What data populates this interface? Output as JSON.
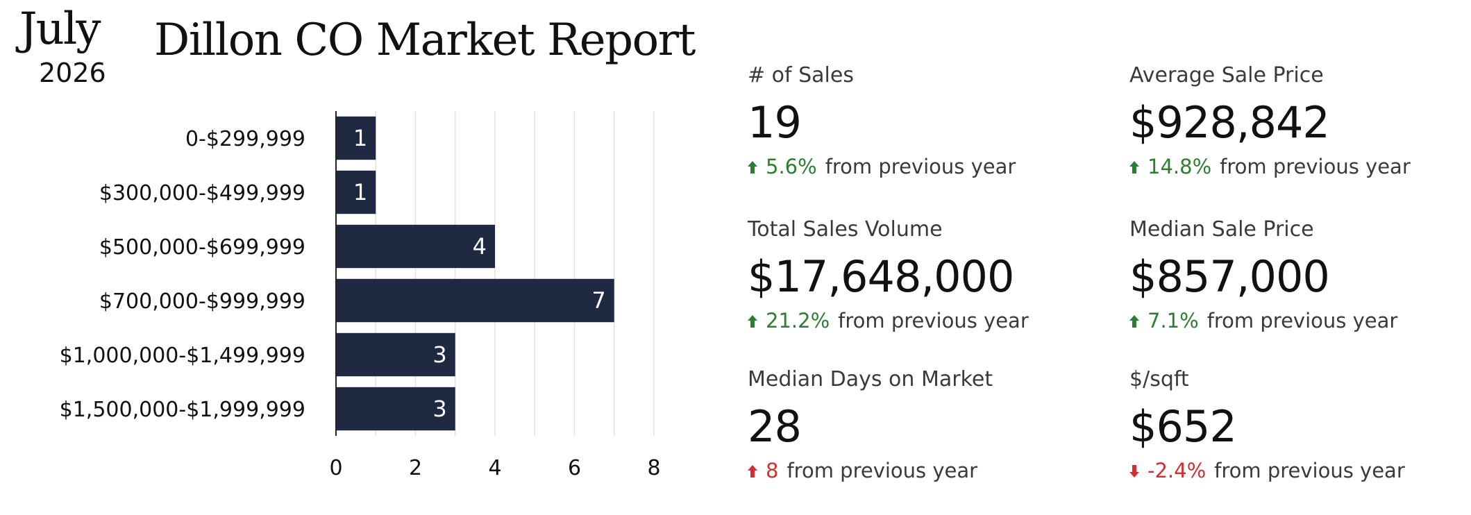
{
  "header": {
    "month": "July",
    "year": "2026",
    "title": "Dillon CO Market Report"
  },
  "chart_data": {
    "type": "bar",
    "orientation": "horizontal",
    "categories": [
      "0-$299,999",
      "$300,000-$499,999",
      "$500,000-$699,999",
      "$700,000-$999,999",
      "$1,000,000-$1,499,999",
      "$1,500,000-$1,999,999"
    ],
    "values": [
      1,
      1,
      4,
      7,
      3,
      3
    ],
    "xticks": [
      "0",
      "2",
      "4",
      "6",
      "8"
    ],
    "xlim": [
      0,
      8
    ],
    "bar_color": "#1f2a42",
    "grid": "vertical",
    "title": "",
    "xlabel": "",
    "ylabel": ""
  },
  "stats": [
    {
      "label": "# of Sales",
      "value": "19",
      "change": "5.6%",
      "direction": "up",
      "suffix": "from previous year"
    },
    {
      "label": "Average Sale Price",
      "value": "$928,842",
      "change": "14.8%",
      "direction": "up",
      "suffix": "from previous year"
    },
    {
      "label": "Total Sales Volume",
      "value": "$17,648,000",
      "change": "21.2%",
      "direction": "up",
      "suffix": "from previous year"
    },
    {
      "label": "Median Sale Price",
      "value": "$857,000",
      "change": "7.1%",
      "direction": "up",
      "suffix": "from previous year"
    },
    {
      "label": "Median Days on Market",
      "value": "28",
      "change": "8",
      "direction": "up-red",
      "suffix": "from previous year"
    },
    {
      "label": "$/sqft",
      "value": "$652",
      "change": "-2.4%",
      "direction": "down",
      "suffix": "from previous year"
    }
  ],
  "colors": {
    "positive": "#2e7d32",
    "negative": "#d32f2f"
  }
}
